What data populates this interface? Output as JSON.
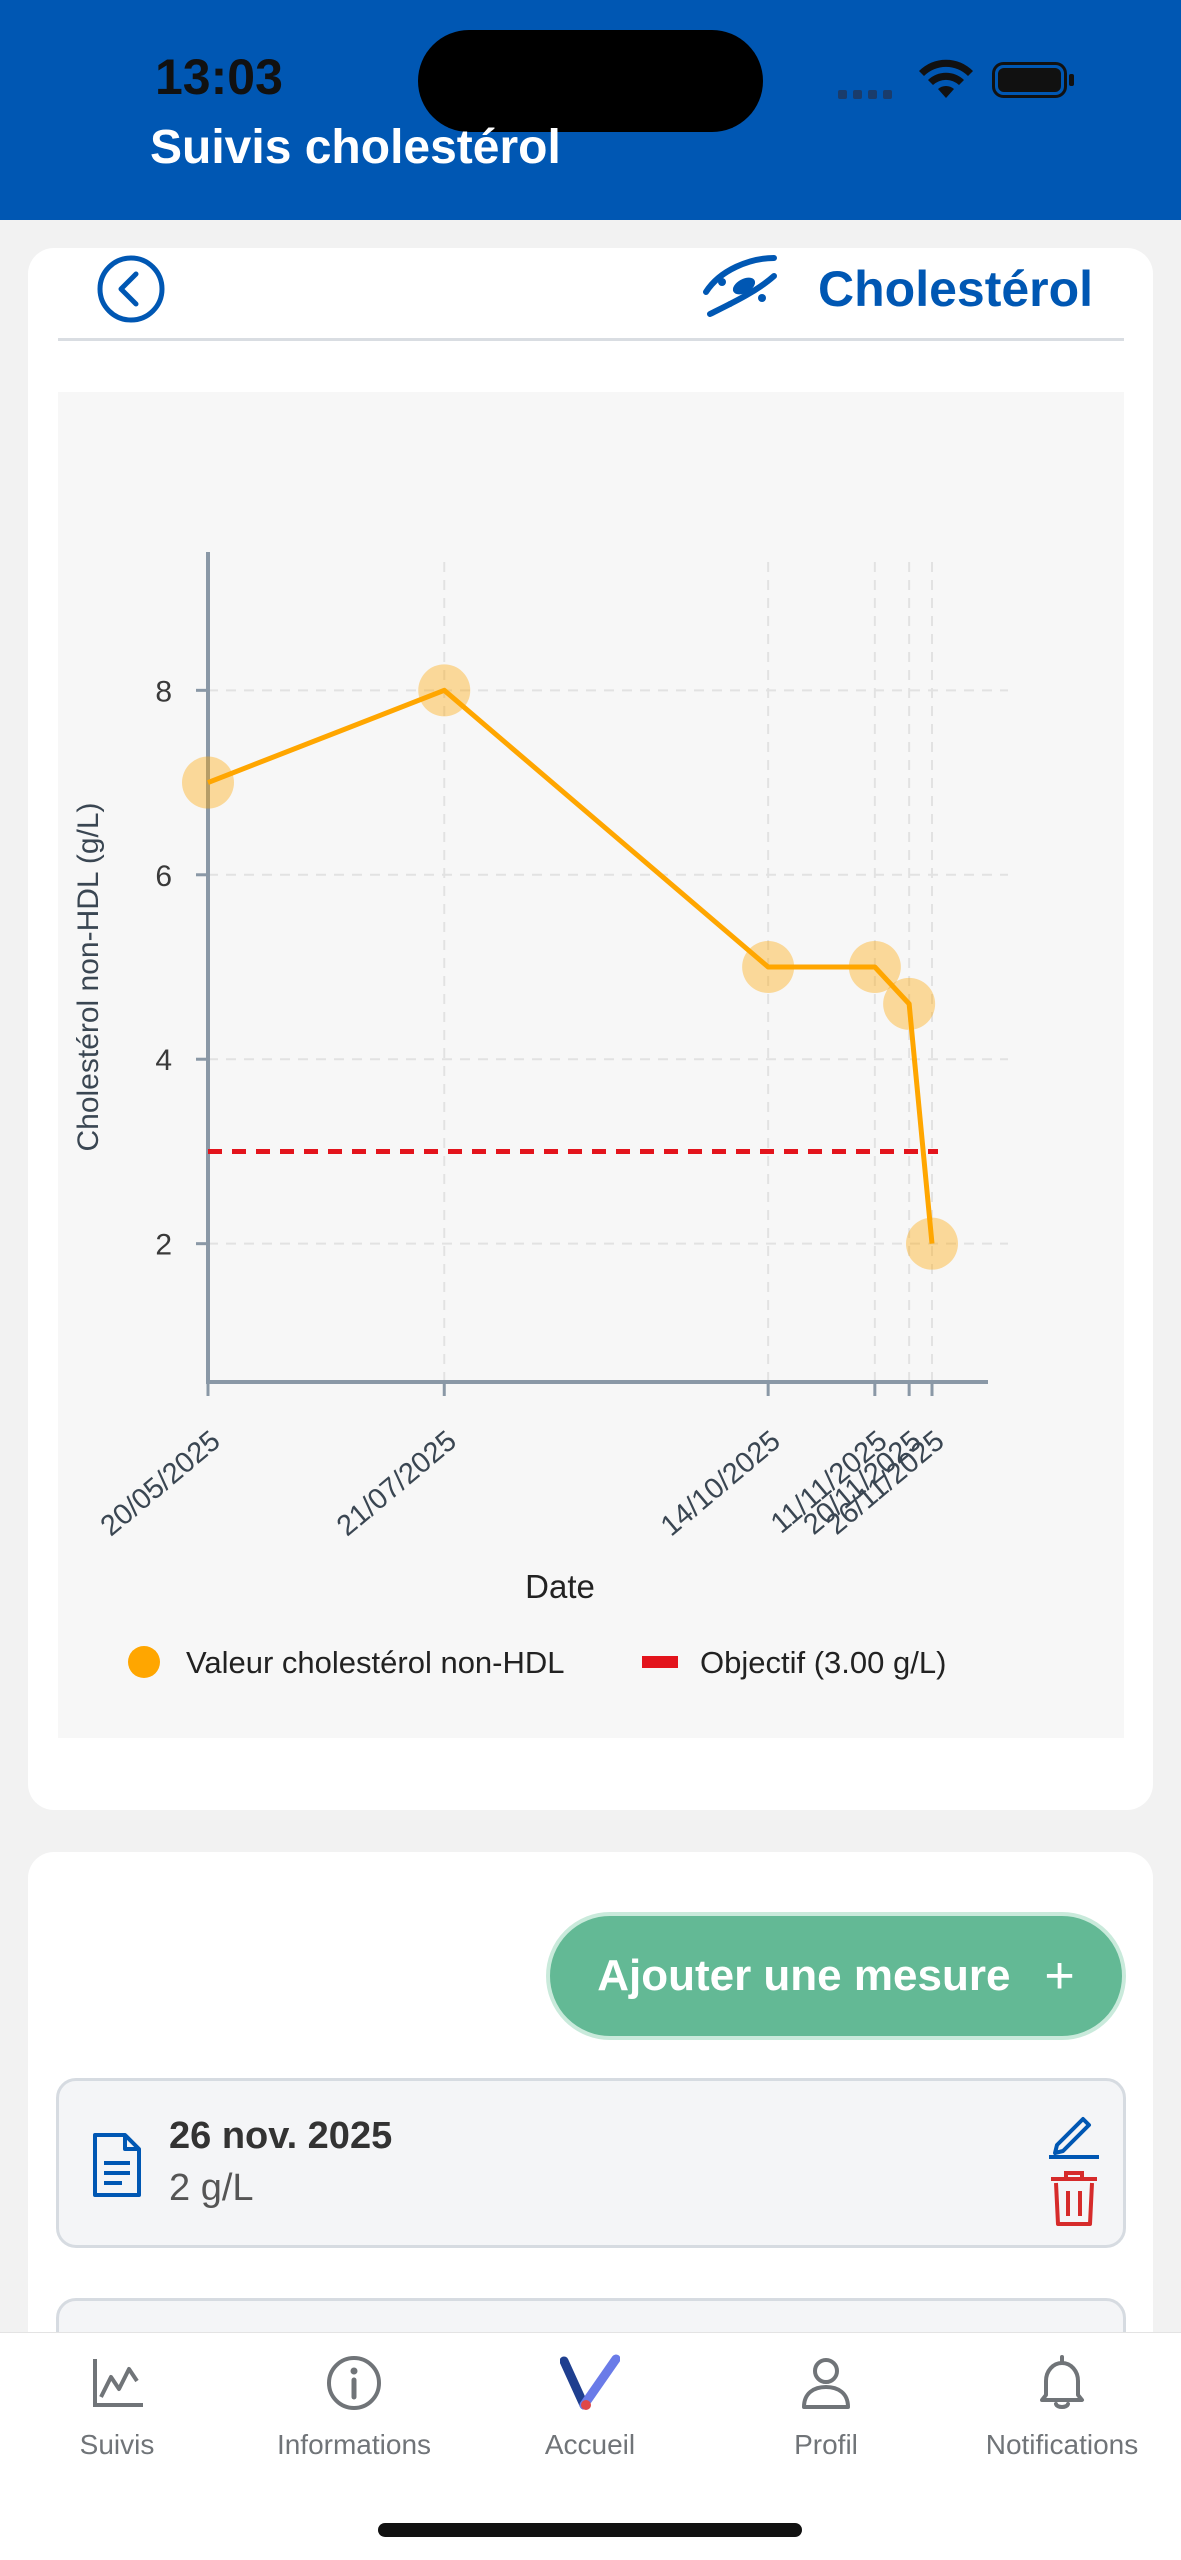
{
  "status_bar": {
    "time": "13:03"
  },
  "header": {
    "title": "Suivis cholestérol"
  },
  "chart_card": {
    "title": "Cholestérol",
    "back_icon": "chevron-left-circle-icon",
    "title_icon": "blood-vessel-icon"
  },
  "chart_data": {
    "type": "line",
    "x": [
      "20/05/2025",
      "21/07/2025",
      "14/10/2025",
      "11/11/2025",
      "20/11/2025",
      "26/11/2025"
    ],
    "series": [
      {
        "name": "Valeur cholestérol non-HDL",
        "values": [
          7,
          8,
          5,
          5,
          4.6,
          2
        ],
        "color": "#ffa600"
      }
    ],
    "target": {
      "name": "Objectif (3.00 g/L)",
      "value": 3,
      "color": "#e3141c"
    },
    "xlabel": "Date",
    "ylabel": "Cholestérol non-HDL (g/L)",
    "yticks": [
      "2",
      "4",
      "6",
      "8"
    ],
    "ylim": [
      0.5,
      9.5
    ],
    "grid": true,
    "legend_position": "bottom"
  },
  "list_card": {
    "add_button_label": "Ajouter une mesure",
    "add_button_plus": "+",
    "measures": [
      {
        "date": "26 nov. 2025",
        "value": "2 g/L"
      }
    ]
  },
  "tab_bar": {
    "tabs": [
      {
        "label": "Suivis",
        "icon": "chart-line-icon"
      },
      {
        "label": "Informations",
        "icon": "info-circle-icon"
      },
      {
        "label": "Accueil",
        "icon": "app-logo-icon"
      },
      {
        "label": "Profil",
        "icon": "person-icon"
      },
      {
        "label": "Notifications",
        "icon": "bell-icon"
      }
    ]
  },
  "colors": {
    "primary_blue": "#0057b3",
    "series_orange": "#ffa600",
    "target_red": "#e3141c",
    "add_button_green": "#63b995",
    "delete_red": "#d62b2b"
  }
}
